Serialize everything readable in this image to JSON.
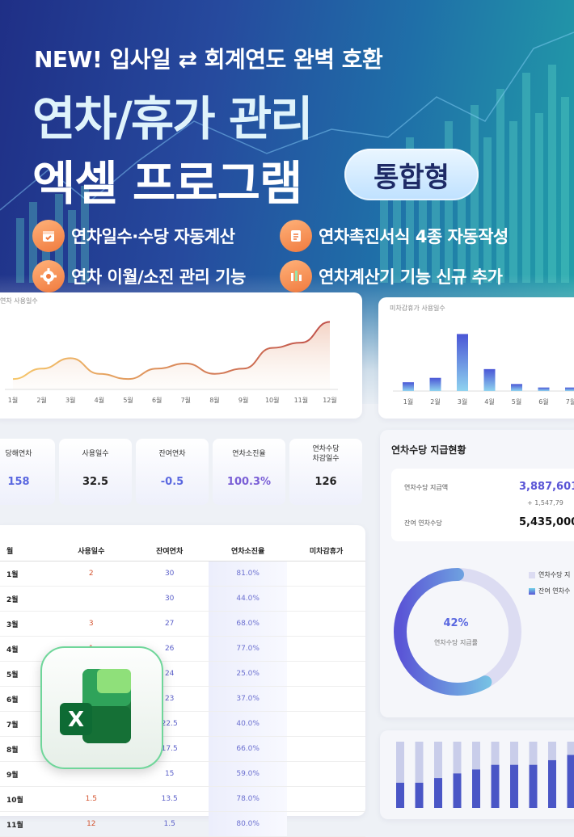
{
  "hero": {
    "headline": "NEW! 입사일 ⇄ 회계연도 완벽 호환",
    "title_line1": "연차/휴가 관리",
    "title_line2": "엑셀 프로그램",
    "badge": "통합형",
    "features": [
      {
        "label": "연차일수·수당 자동계산",
        "icon": "calendar-check-icon"
      },
      {
        "label": "연차촉진서식 4종 자동작성",
        "icon": "document-icon"
      },
      {
        "label": "연차 이월/소진 관리 기능",
        "icon": "gear-icon"
      },
      {
        "label": "연차계산기 기능 신규 추가",
        "icon": "calculator-icon"
      }
    ],
    "accent": "#f07a3e"
  },
  "usage_chart": {
    "title": "연차 사용일수",
    "chart_data": {
      "type": "area",
      "categories": [
        "1월",
        "2월",
        "3월",
        "4월",
        "5월",
        "6월",
        "7월",
        "8월",
        "9월",
        "10월",
        "11월",
        "12월"
      ],
      "values": [
        2,
        4,
        6,
        3,
        2,
        4,
        5,
        3,
        4,
        8,
        9,
        13
      ],
      "ylim": [
        0,
        14
      ],
      "grid": false
    }
  },
  "unused_chart": {
    "title": "미차감휴가 사용일수",
    "chart_data": {
      "type": "bar",
      "categories": [
        "1월",
        "2월",
        "3월",
        "4월",
        "5월",
        "6월",
        "7월"
      ],
      "values": [
        1,
        1.5,
        6.5,
        2.5,
        0.8,
        0.4,
        0.4
      ],
      "ylim": [
        0,
        7
      ],
      "grid": false
    }
  },
  "stats": [
    {
      "label": "당해연차",
      "value": "158",
      "color": "#5a68e0"
    },
    {
      "label": "사용일수",
      "value": "32.5",
      "color": "#222222"
    },
    {
      "label": "잔여연차",
      "value": "-0.5",
      "color": "#5a68e0"
    },
    {
      "label": "연차소진율",
      "value": "100.3%",
      "color": "#7a5fd6"
    },
    {
      "label": "연차수당\n차감일수",
      "value": "126",
      "color": "#222222"
    }
  ],
  "table": {
    "headers": [
      "월",
      "사용일수",
      "잔여연차",
      "연차소진율",
      "미차감휴가"
    ],
    "rows": [
      {
        "month": "1월",
        "used": "2",
        "remain": "30",
        "rate": "81.0%",
        "extra": ""
      },
      {
        "month": "2월",
        "used": "",
        "remain": "30",
        "rate": "44.0%",
        "extra": ""
      },
      {
        "month": "3월",
        "used": "3",
        "remain": "27",
        "rate": "68.0%",
        "extra": ""
      },
      {
        "month": "4월",
        "used": "1",
        "remain": "26",
        "rate": "77.0%",
        "extra": ""
      },
      {
        "month": "5월",
        "used": "",
        "remain": "24",
        "rate": "25.0%",
        "extra": ""
      },
      {
        "month": "6월",
        "used": "",
        "remain": "23",
        "rate": "37.0%",
        "extra": ""
      },
      {
        "month": "7월",
        "used": "",
        "remain": "22.5",
        "rate": "40.0%",
        "extra": ""
      },
      {
        "month": "8월",
        "used": "",
        "remain": "17.5",
        "rate": "66.0%",
        "extra": ""
      },
      {
        "month": "9월",
        "used": "",
        "remain": "15",
        "rate": "59.0%",
        "extra": ""
      },
      {
        "month": "10월",
        "used": "1.5",
        "remain": "13.5",
        "rate": "78.0%",
        "extra": ""
      },
      {
        "month": "11월",
        "used": "12",
        "remain": "1.5",
        "rate": "80.0%",
        "extra": ""
      }
    ]
  },
  "allowance": {
    "title": "연차수당 지급현황",
    "paid_label": "연차수당 지급액",
    "paid_value": "3,887,601",
    "paid_sub": "+ 1,547,79",
    "remain_label": "잔여 연차수당",
    "remain_value": "5,435,000",
    "donut": {
      "chart_data": {
        "type": "pie",
        "series": [
          {
            "name": "연차수당 지",
            "value": 42
          },
          {
            "name": "잔여 연차수",
            "value": 58
          }
        ]
      },
      "center_value": "42%",
      "center_label": "연차수당 지급률"
    },
    "legend": [
      "연차수당 지",
      "잔여 연차수"
    ]
  },
  "bottom_chart": {
    "chart_data": {
      "type": "bar",
      "values": [
        0.38,
        0.38,
        0.45,
        0.52,
        0.58,
        0.65,
        0.65,
        0.65,
        0.72,
        0.8
      ],
      "ylim": [
        0,
        1
      ]
    }
  }
}
